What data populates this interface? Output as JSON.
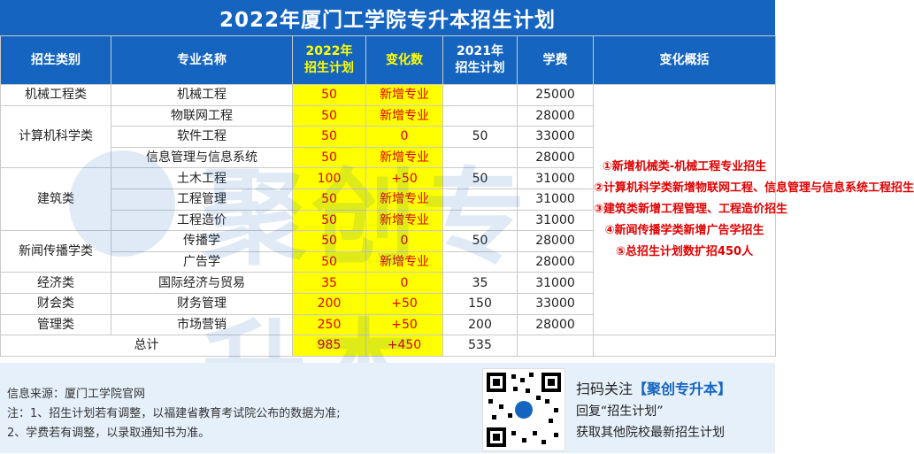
{
  "title": "2022年厦门工学院专升本招生计划",
  "watermark": "聚创专升本",
  "headers": {
    "category": "招生类别",
    "major": "专业名称",
    "plan2022_line1": "2022年",
    "plan2022_line2": "招生计划",
    "change": "变化数",
    "plan2021_line1": "2021年",
    "plan2021_line2": "招生计划",
    "fee": "学费",
    "summary": "变化概括"
  },
  "categories": {
    "c1": "机械工程类",
    "c2": "计算机科学类",
    "c3": "建筑类",
    "c4": "新闻传播学类",
    "c5": "经济类",
    "c6": "财会类",
    "c7": "管理类"
  },
  "rows": [
    {
      "major": "机械工程",
      "plan2022": "50",
      "change": "新增专业",
      "plan2021": "",
      "fee": "25000"
    },
    {
      "major": "物联网工程",
      "plan2022": "50",
      "change": "新增专业",
      "plan2021": "",
      "fee": "28000"
    },
    {
      "major": "软件工程",
      "plan2022": "50",
      "change": "0",
      "plan2021": "50",
      "fee": "33000"
    },
    {
      "major": "信息管理与信息系统",
      "plan2022": "50",
      "change": "新增专业",
      "plan2021": "",
      "fee": "28000"
    },
    {
      "major": "土木工程",
      "plan2022": "100",
      "change": "+50",
      "plan2021": "50",
      "fee": "31000"
    },
    {
      "major": "工程管理",
      "plan2022": "50",
      "change": "新增专业",
      "plan2021": "",
      "fee": "31000"
    },
    {
      "major": "工程造价",
      "plan2022": "50",
      "change": "新增专业",
      "plan2021": "",
      "fee": "31000"
    },
    {
      "major": "传播学",
      "plan2022": "50",
      "change": "0",
      "plan2021": "50",
      "fee": "28000"
    },
    {
      "major": "广告学",
      "plan2022": "50",
      "change": "新增专业",
      "plan2021": "",
      "fee": "28000"
    },
    {
      "major": "国际经济与贸易",
      "plan2022": "35",
      "change": "0",
      "plan2021": "35",
      "fee": "31000"
    },
    {
      "major": "财务管理",
      "plan2022": "200",
      "change": "+50",
      "plan2021": "150",
      "fee": "33000"
    },
    {
      "major": "市场营销",
      "plan2022": "250",
      "change": "+50",
      "plan2021": "200",
      "fee": "28000"
    }
  ],
  "total": {
    "label": "总计",
    "plan2022": "985",
    "change": "+450",
    "plan2021": "535"
  },
  "summary": [
    "①新增机械类-机械工程专业招生",
    "②计算机科学类新增物联网工程、信息管理与信息系统工程招生",
    "③建筑类新增工程管理、工程造价招生",
    "④新闻传播学类新增广告学招生",
    "⑤总招生计划数扩招450人"
  ],
  "footer": {
    "source": "信息来源：厦门工学院官网",
    "note1": "注：1、招生计划若有调整，以福建省教育考试院公布的数据为准;",
    "note2": "2、学费若有调整，以录取通知书为准。",
    "scan_prefix": "扫码关注",
    "scan_brand": "【聚创专升本】",
    "reply": "回复“招生计划”",
    "more": "获取其他院校最新招生计划"
  },
  "colors": {
    "header_blue": "#1565c0",
    "highlight_yellow": "#ffff00",
    "accent_red": "#e00000",
    "footer_bg": "#e6f0fa"
  }
}
